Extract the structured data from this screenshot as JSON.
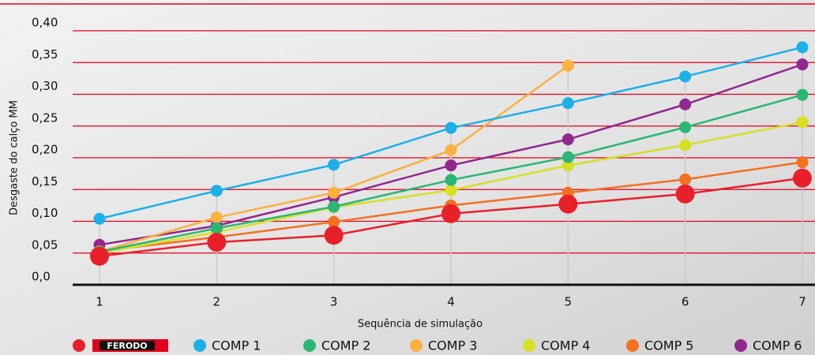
{
  "chart_data": {
    "type": "line",
    "y_label": "Desgaste do calço MM",
    "x_label": "Sequência de simulação",
    "categories": [
      "1",
      "2",
      "3",
      "4",
      "5",
      "6",
      "7"
    ],
    "ylim": [
      0,
      0.4
    ],
    "yticks": [
      {
        "value": 0,
        "label": "0,0"
      },
      {
        "value": 0.05,
        "label": "0,05"
      },
      {
        "value": 0.1,
        "label": "0,10"
      },
      {
        "value": 0.15,
        "label": "0,15"
      },
      {
        "value": 0.2,
        "label": "0,20"
      },
      {
        "value": 0.25,
        "label": "0,25"
      },
      {
        "value": 0.3,
        "label": "0,30"
      },
      {
        "value": 0.35,
        "label": "0,35"
      },
      {
        "value": 0.4,
        "label": "0,40"
      }
    ],
    "grid": true,
    "grid_color": "#e3001b",
    "series": [
      {
        "name": "FERODO",
        "color": "#e8202a",
        "values": [
          0.045,
          0.067,
          0.078,
          0.112,
          0.127,
          0.143,
          0.168
        ]
      },
      {
        "name": "COMP 1",
        "color": "#1cb0e8",
        "values": [
          0.104,
          0.148,
          0.189,
          0.247,
          0.286,
          0.328,
          0.374
        ]
      },
      {
        "name": "COMP 2",
        "color": "#2bb673",
        "values": [
          0.052,
          0.089,
          0.123,
          0.165,
          0.201,
          0.248,
          0.299
        ]
      },
      {
        "name": "COMP 3",
        "color": "#fbb040",
        "values": [
          0.052,
          0.106,
          0.145,
          0.212,
          0.345,
          null,
          null
        ]
      },
      {
        "name": "COMP 4",
        "color": "#d7df23",
        "values": [
          0.05,
          0.083,
          0.122,
          0.149,
          0.188,
          0.22,
          0.256
        ]
      },
      {
        "name": "COMP 5",
        "color": "#f37021",
        "values": [
          0.053,
          0.075,
          0.099,
          0.125,
          0.145,
          0.166,
          0.193
        ]
      },
      {
        "name": "COMP 6",
        "color": "#92278f",
        "values": [
          0.063,
          0.093,
          0.138,
          0.188,
          0.229,
          0.284,
          0.347
        ]
      }
    ]
  }
}
